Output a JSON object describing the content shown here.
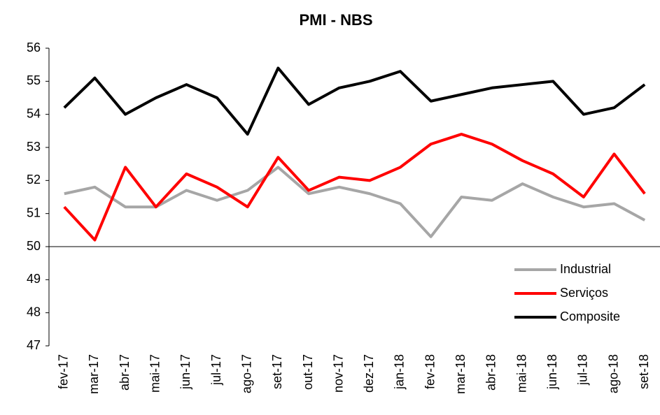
{
  "chart_data": {
    "type": "line",
    "title": "PMI - NBS",
    "categories": [
      "fev-17",
      "mar-17",
      "abr-17",
      "mai-17",
      "jun-17",
      "jul-17",
      "ago-17",
      "set-17",
      "out-17",
      "nov-17",
      "dez-17",
      "jan-18",
      "fev-18",
      "mar-18",
      "abr-18",
      "mai-18",
      "jun-18",
      "jul-18",
      "ago-18",
      "set-18"
    ],
    "series": [
      {
        "name": "Industrial",
        "color": "#a6a6a6",
        "values": [
          51.6,
          51.8,
          51.2,
          51.2,
          51.7,
          51.4,
          51.7,
          52.4,
          51.6,
          51.8,
          51.6,
          51.3,
          50.3,
          51.5,
          51.4,
          51.9,
          51.5,
          51.2,
          51.3,
          50.8
        ]
      },
      {
        "name": "Serviços",
        "color": "#ff0000",
        "values": [
          51.2,
          50.2,
          52.4,
          51.2,
          52.2,
          51.8,
          51.2,
          52.7,
          51.7,
          52.1,
          52.0,
          52.4,
          53.1,
          53.4,
          53.1,
          52.6,
          52.2,
          51.5,
          52.8,
          51.6
        ]
      },
      {
        "name": "Composite",
        "color": "#000000",
        "values": [
          54.2,
          55.1,
          54.0,
          54.5,
          54.9,
          54.5,
          53.4,
          55.4,
          54.3,
          54.8,
          55.0,
          55.3,
          54.4,
          54.6,
          54.8,
          54.9,
          55.0,
          54.0,
          54.2,
          54.9
        ]
      }
    ],
    "ylim": [
      47,
      56
    ],
    "yticks": [
      47,
      48,
      49,
      50,
      51,
      52,
      53,
      54,
      55,
      56
    ],
    "x_axis_crosses": 50,
    "grid": false,
    "legend": "lower-right"
  }
}
